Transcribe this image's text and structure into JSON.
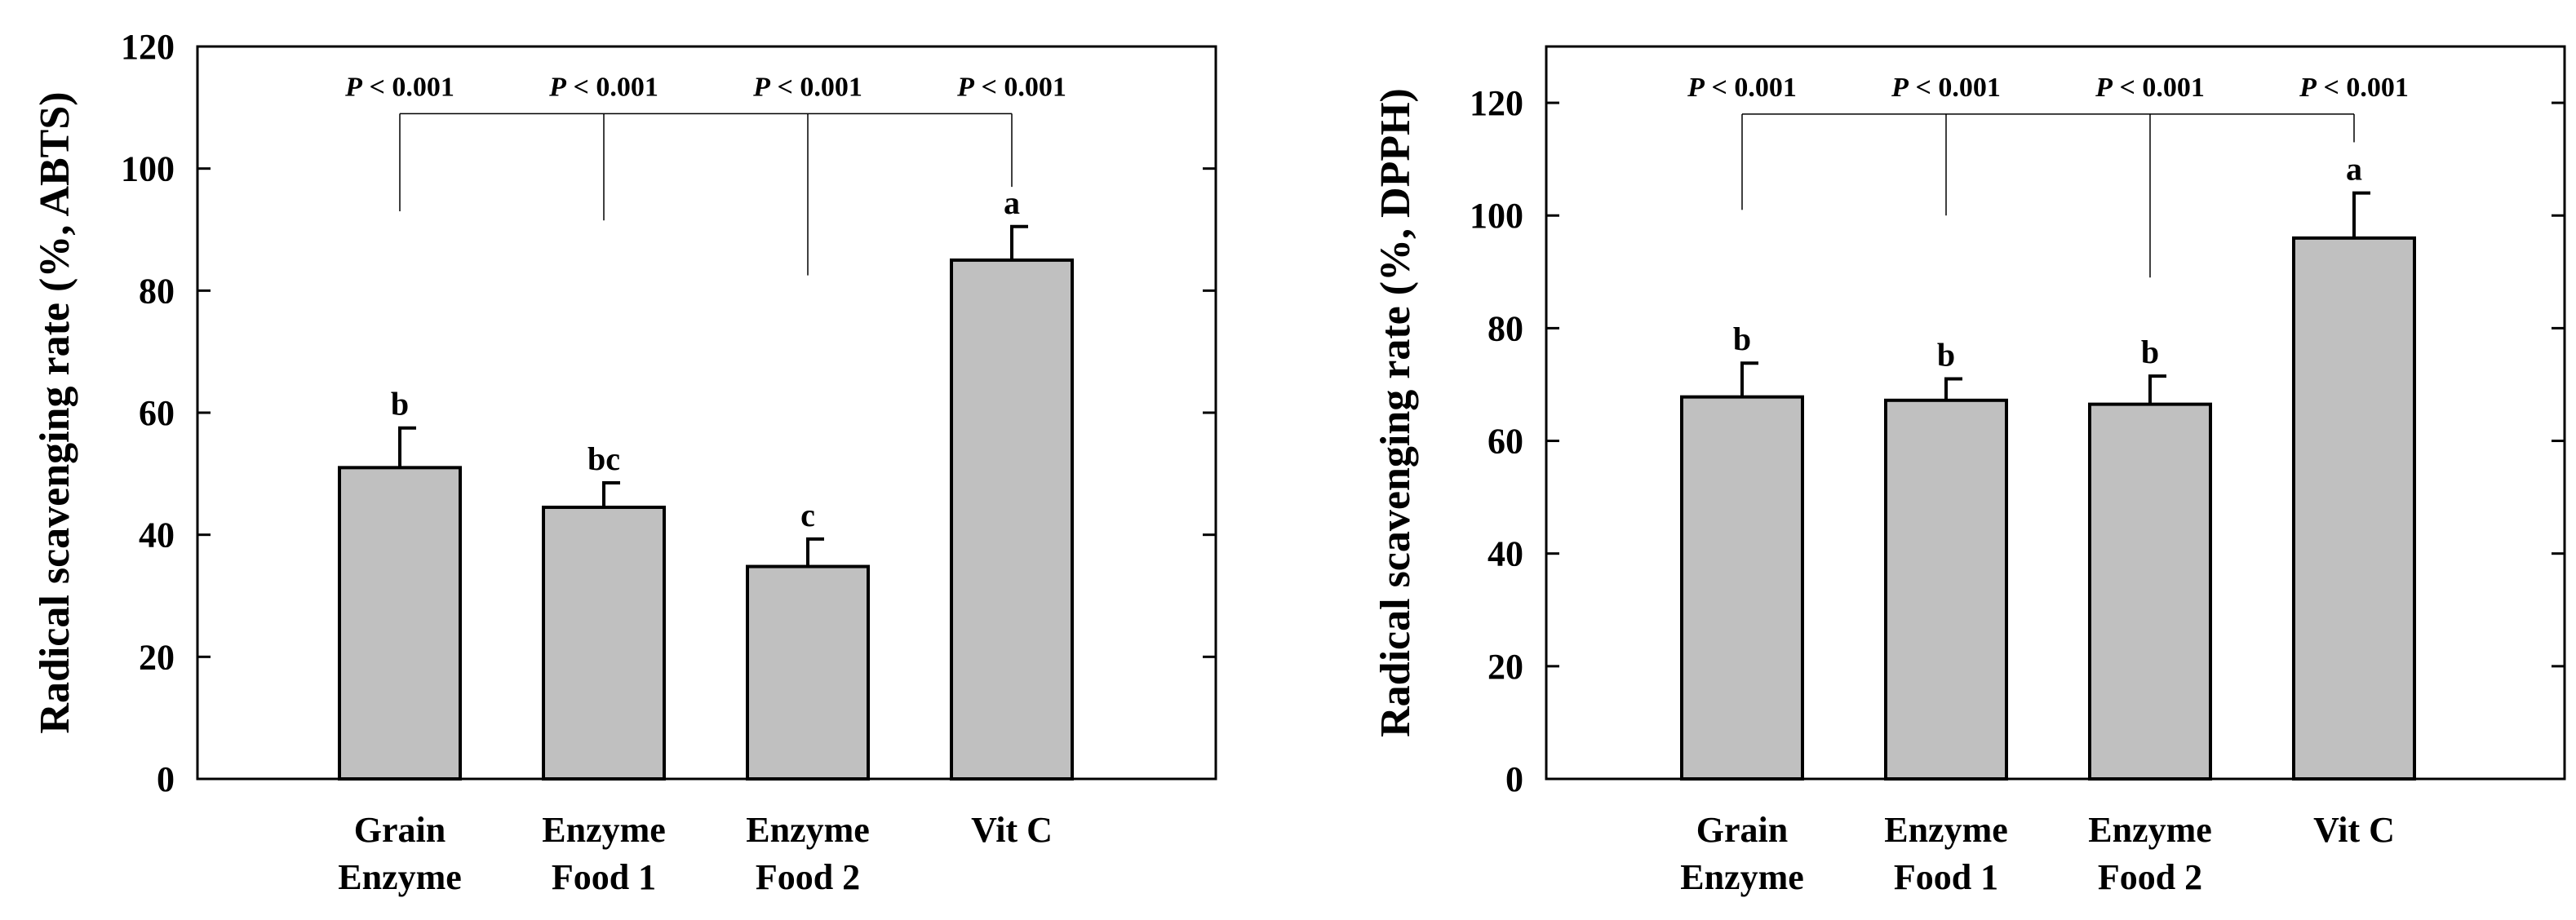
{
  "chart_data": [
    {
      "type": "bar",
      "title": "",
      "xlabel": "",
      "ylabel": "Radical scavenging rate (%, ABTS)",
      "ylim": [
        0,
        120
      ],
      "yticks": [
        "0",
        "20",
        "40",
        "60",
        "80",
        "100",
        "120"
      ],
      "categories": [
        [
          "Grain",
          "Enzyme"
        ],
        [
          "Enzyme",
          "Food 1"
        ],
        [
          "Enzyme",
          "Food 2"
        ],
        [
          "Vit C"
        ]
      ],
      "values": [
        51,
        44.5,
        34.8,
        85
      ],
      "errors": [
        6.5,
        4,
        4.5,
        5.5
      ],
      "bar_color": "#c0c0c0",
      "significance_letters": [
        "b",
        "bc",
        "c",
        "a"
      ],
      "comparison": {
        "target_index": 3,
        "p_labels": [
          "P < 0.001",
          "P < 0.001",
          "P < 0.001",
          "P < 0.001"
        ],
        "bracket_value": 109,
        "drop_values": [
          93,
          91.5,
          82.5,
          97
        ]
      }
    },
    {
      "type": "bar",
      "title": "",
      "xlabel": "",
      "ylabel": "Radical scavenging rate (%, DPPH)",
      "ylim": [
        0,
        130
      ],
      "yticks": [
        "0",
        "20",
        "40",
        "60",
        "80",
        "100",
        "120"
      ],
      "categories": [
        [
          "Grain",
          "Enzyme"
        ],
        [
          "Enzyme",
          "Food 1"
        ],
        [
          "Enzyme",
          "Food 2"
        ],
        [
          "Vit C"
        ]
      ],
      "values": [
        67.8,
        67.2,
        66.5,
        96
      ],
      "errors": [
        6,
        3.8,
        5,
        8
      ],
      "bar_color": "#c0c0c0",
      "significance_letters": [
        "b",
        "b",
        "b",
        "a"
      ],
      "comparison": {
        "target_index": 3,
        "p_labels": [
          "P < 0.001",
          "P < 0.001",
          "P < 0.001",
          "P < 0.001"
        ],
        "bracket_value": 118,
        "drop_values": [
          101,
          100,
          89,
          113
        ]
      }
    }
  ]
}
